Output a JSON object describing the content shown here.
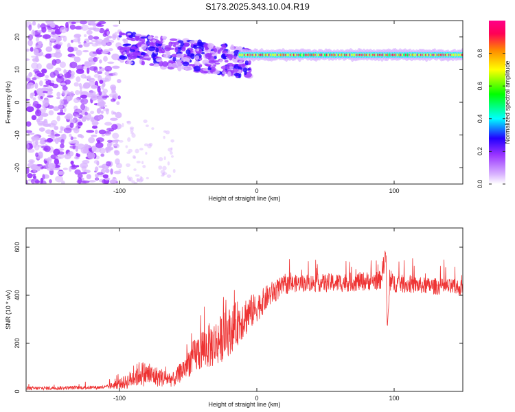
{
  "figure": {
    "title": "S173.2025.343.10.04.R19"
  },
  "chart_data": [
    {
      "type": "heatmap",
      "name": "spectrogram",
      "xlabel": "Height of straight line (km)",
      "ylabel": "Frequency (Hz)",
      "xlim": [
        -168,
        150
      ],
      "ylim": [
        -25,
        25
      ],
      "xticks": [
        -100,
        0,
        100
      ],
      "yticks": [
        -20,
        -10,
        0,
        10,
        20
      ],
      "colorbar": {
        "label": "Normalized spectral amplitude",
        "range": [
          0,
          1
        ],
        "ticks": [
          0.0,
          0.2,
          0.4,
          0.6,
          0.8
        ],
        "colors": [
          "#ffffff",
          "#d9b3ff",
          "#9933ff",
          "#2200ff",
          "#00ffff",
          "#00ff00",
          "#ffff00",
          "#ff8800",
          "#ff0055",
          "#ff0088"
        ]
      },
      "features": [
        {
          "name": "scattered noise",
          "x_range": [
            -168,
            -100
          ],
          "freq_range": [
            -25,
            25
          ],
          "amplitude": 0.15
        },
        {
          "name": "dispersed band",
          "x_range": [
            -100,
            -5
          ],
          "freq_range": [
            4,
            25
          ],
          "amplitude": 0.35
        },
        {
          "name": "narrow tone",
          "x_range": [
            -12,
            150
          ],
          "freq": 14.5,
          "width_hz": 2,
          "amplitude": 0.9
        }
      ]
    },
    {
      "type": "line",
      "name": "snr",
      "xlabel": "Height of straight line (km)",
      "ylabel": "SNR (10 * v/v)",
      "xlim": [
        -168,
        150
      ],
      "ylim": [
        0,
        680
      ],
      "xticks": [
        -100,
        0,
        100
      ],
      "yticks": [
        0,
        200,
        400,
        600
      ],
      "color": "#ee3333",
      "envelope": {
        "x": [
          -168,
          -110,
          -95,
          -85,
          -75,
          -60,
          -50,
          -40,
          -30,
          -20,
          -10,
          0,
          10,
          20,
          30,
          60,
          90,
          94,
          95,
          97,
          120,
          150
        ],
        "baseline": [
          10,
          15,
          30,
          60,
          50,
          40,
          100,
          150,
          170,
          220,
          280,
          330,
          390,
          430,
          440,
          440,
          450,
          560,
          260,
          440,
          430,
          420
        ],
        "spread": [
          15,
          15,
          60,
          110,
          90,
          60,
          120,
          180,
          200,
          200,
          180,
          120,
          100,
          80,
          70,
          80,
          80,
          100,
          0,
          80,
          70,
          70
        ]
      }
    }
  ]
}
